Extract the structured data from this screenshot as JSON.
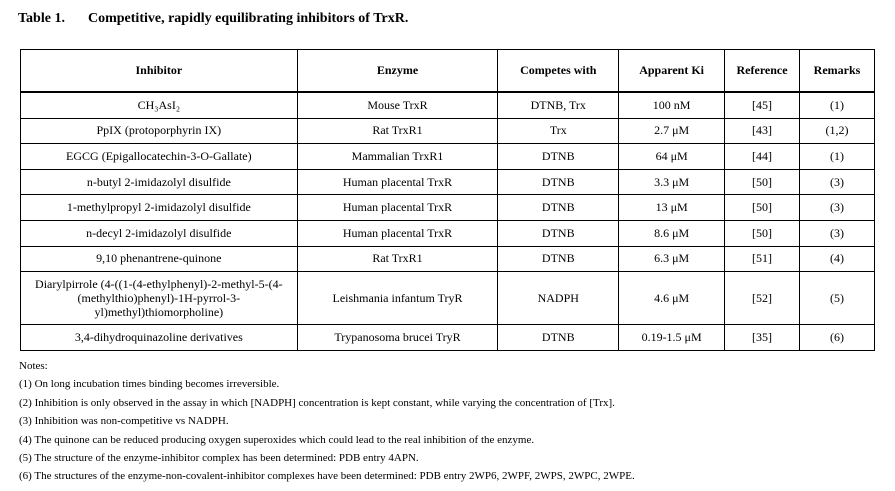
{
  "title": {
    "number": "Table 1.",
    "text": "Competitive, rapidly equilibrating inhibitors of TrxR."
  },
  "table": {
    "headers": [
      "Inhibitor",
      "Enzyme",
      "Competes with",
      "Apparent Ki",
      "Reference",
      "Remarks"
    ],
    "rows": [
      [
        "CH₃AsI₂",
        "Mouse TrxR",
        "DTNB, Trx",
        "100 nM",
        "[45]",
        "(1)"
      ],
      [
        "PpIX (protoporphyrin IX)",
        "Rat TrxR1",
        "Trx",
        "2.7 μM",
        "[43]",
        "(1,2)"
      ],
      [
        "EGCG (Epigallocatechin-3-O-Gallate)",
        "Mammalian TrxR1",
        "DTNB",
        "64 μM",
        "[44]",
        "(1)"
      ],
      [
        "n-butyl 2-imidazolyl disulfide",
        "Human placental TrxR",
        "DTNB",
        "3.3 μM",
        "[50]",
        "(3)"
      ],
      [
        "1-methylpropyl 2-imidazolyl disulfide",
        "Human placental TrxR",
        "DTNB",
        "13 μM",
        "[50]",
        "(3)"
      ],
      [
        "n-decyl 2-imidazolyl disulfide",
        "Human placental TrxR",
        "DTNB",
        "8.6 μM",
        "[50]",
        "(3)"
      ],
      [
        "9,10 phenantrene-quinone",
        "Rat TrxR1",
        "DTNB",
        "6.3 μM",
        "[51]",
        "(4)"
      ],
      [
        "Diarylpirrole (4-((1-(4-ethylphenyl)-2-methyl-5-(4-(methylthio)phenyl)-1H-pyrrol-3-yl)methyl)thiomorpholine)",
        "Leishmania infantum TryR",
        "NADPH",
        "4.6 μM",
        "[52]",
        "(5)"
      ],
      [
        "3,4-dihydroquinazoline derivatives",
        "Trypanosoma brucei TryR",
        "DTNB",
        "0.19-1.5 μM",
        "[35]",
        "(6)"
      ]
    ]
  },
  "notes": {
    "heading": "Notes:",
    "items": [
      "(1) On long incubation times binding becomes irreversible.",
      "(2) Inhibition is only observed in the assay in which [NADPH] concentration is kept constant, while varying the concentration of [Trx].",
      "(3) Inhibition was non-competitive vs NADPH.",
      "(4) The quinone can be reduced producing oxygen superoxides which could lead to the real inhibition of the enzyme.",
      "(5) The structure of the enzyme-inhibitor complex has been determined: PDB entry 4APN.",
      "(6) The structures of the enzyme-non-covalent-inhibitor complexes have been determined: PDB entry 2WP6, 2WPF, 2WPS, 2WPC, 2WPE."
    ]
  }
}
